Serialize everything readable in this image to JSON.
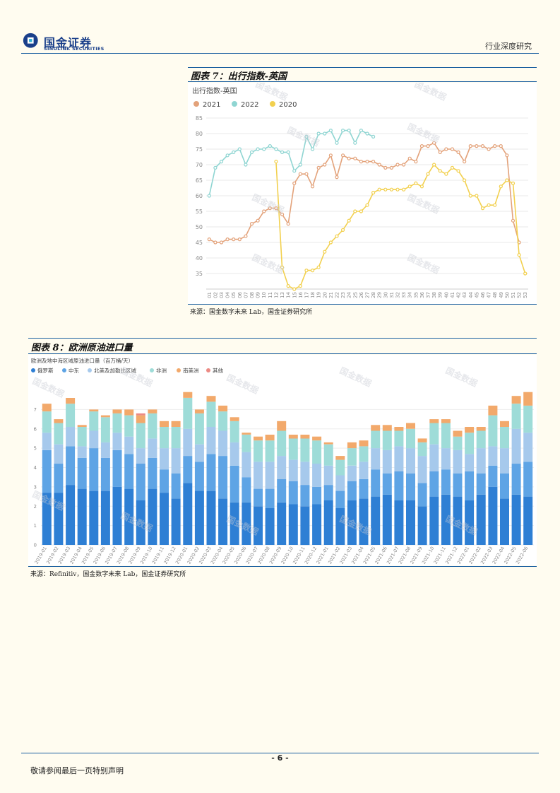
{
  "header": {
    "logo_cn": "国金证券",
    "logo_en": "SINOLINK SECURITIES",
    "doc_type": "行业深度研究"
  },
  "figure7": {
    "title": "图表 7：出行指数-英国",
    "source": "来源：国金数字未来 Lab，国金证券研究所",
    "watermark": "国金数据"
  },
  "figure8": {
    "title": "图表 8：欧洲原油进口量",
    "source": "来源：Refinitiv，国金数字未来 Lab，国金证券研究所",
    "watermark": "国金数据"
  },
  "footer": {
    "page": "- 6 -",
    "disclaimer": "敬请参阅最后一页特别声明"
  },
  "chart_data": [
    {
      "type": "line",
      "title": "出行指数-英国",
      "x": [
        "01",
        "02",
        "03",
        "04",
        "05",
        "06",
        "07",
        "08",
        "09",
        "10",
        "11",
        "12",
        "13",
        "14",
        "15",
        "16",
        "17",
        "18",
        "19",
        "20",
        "21",
        "22",
        "23",
        "24",
        "25",
        "26",
        "27",
        "28",
        "29",
        "30",
        "31",
        "32",
        "33",
        "34",
        "35",
        "36",
        "37",
        "38",
        "39",
        "40",
        "41",
        "42",
        "43",
        "44",
        "45",
        "46",
        "47",
        "48",
        "49",
        "50",
        "51",
        "52",
        "53"
      ],
      "ylim": [
        30,
        85
      ],
      "yticks": [
        35,
        40,
        45,
        50,
        55,
        60,
        65,
        70,
        75,
        80,
        85
      ],
      "legend_position": "top-left",
      "series": [
        {
          "name": "2021",
          "color": "#e3a27a",
          "values": [
            46,
            45,
            45,
            46,
            46,
            46,
            47,
            51,
            52,
            55,
            56,
            56,
            54,
            51,
            64,
            67,
            67,
            63,
            69,
            70,
            73,
            66,
            73,
            72,
            72,
            71,
            71,
            71,
            70,
            69,
            69,
            70,
            70,
            72,
            71,
            76,
            76,
            77,
            74,
            75,
            75,
            74,
            71,
            76,
            76,
            76,
            75,
            76,
            76,
            73,
            52,
            45,
            null
          ]
        },
        {
          "name": "2022",
          "color": "#8fd5d2",
          "values": [
            60,
            69,
            71,
            73,
            74,
            75,
            70,
            74,
            75,
            75,
            76,
            75,
            74,
            74,
            68,
            70,
            79,
            75,
            80,
            80,
            81,
            77,
            81,
            81,
            77,
            81,
            80,
            79,
            null,
            null,
            null,
            null,
            null,
            null,
            null,
            null,
            null,
            null,
            null,
            null,
            null,
            null,
            null,
            null,
            null,
            null,
            null,
            null,
            null,
            null,
            null,
            null,
            null
          ]
        },
        {
          "name": "2020",
          "color": "#f2d04e",
          "values": [
            null,
            null,
            null,
            null,
            null,
            null,
            null,
            null,
            null,
            null,
            null,
            71,
            37,
            31,
            30,
            31,
            36,
            36,
            37,
            42,
            45,
            47,
            49,
            52,
            55,
            55,
            57,
            61,
            62,
            62,
            62,
            62,
            62,
            63,
            64,
            63,
            67,
            70,
            68,
            67,
            69,
            68,
            65,
            60,
            60,
            56,
            57,
            57,
            63,
            65,
            64,
            41,
            35
          ]
        }
      ]
    },
    {
      "type": "bar",
      "stacked": true,
      "title": "欧洲及地中海区域原油进口量（百万桶/天）",
      "ylim": [
        0,
        8
      ],
      "yticks": [
        0,
        1,
        2,
        3,
        4,
        5,
        6,
        7
      ],
      "legend_position": "top-left",
      "categories": [
        "2019-01",
        "2019-02",
        "2019-03",
        "2019-04",
        "2019-05",
        "2019-06",
        "2019-07",
        "2019-08",
        "2019-09",
        "2019-10",
        "2019-11",
        "2019-12",
        "2020-01",
        "2020-02",
        "2020-03",
        "2020-04",
        "2020-05",
        "2020-06",
        "2020-07",
        "2020-08",
        "2020-09",
        "2020-10",
        "2020-11",
        "2020-12",
        "2021-01",
        "2021-02",
        "2021-03",
        "2021-04",
        "2021-05",
        "2021-06",
        "2021-07",
        "2021-08",
        "2021-09",
        "2021-10",
        "2021-11",
        "2021-12",
        "2022-01",
        "2022-02",
        "2022-03",
        "2022-04",
        "2022-05",
        "2022-06"
      ],
      "series": [
        {
          "name": "俄罗斯",
          "color": "#2e7fd4",
          "values": [
            2.7,
            2.7,
            3.1,
            2.9,
            2.8,
            2.8,
            3.0,
            2.9,
            2.3,
            2.9,
            2.7,
            2.4,
            3.2,
            2.8,
            2.8,
            2.4,
            2.2,
            2.2,
            2.0,
            1.9,
            2.2,
            2.1,
            2.0,
            2.1,
            2.3,
            1.9,
            2.3,
            2.4,
            2.5,
            2.6,
            2.3,
            2.3,
            2.0,
            2.5,
            2.6,
            2.5,
            2.3,
            2.6,
            3.0,
            2.4,
            2.6,
            2.5
          ]
        },
        {
          "name": "中东",
          "color": "#5ea4e5",
          "values": [
            2.2,
            1.5,
            2.0,
            1.6,
            2.2,
            1.7,
            1.9,
            1.8,
            1.9,
            1.6,
            1.2,
            1.3,
            1.4,
            1.5,
            1.9,
            2.2,
            1.9,
            1.3,
            0.9,
            1.0,
            1.2,
            1.2,
            1.1,
            0.9,
            0.8,
            0.9,
            1.0,
            1.0,
            1.4,
            1.1,
            1.5,
            1.4,
            1.2,
            1.3,
            1.3,
            1.2,
            1.5,
            1.1,
            1.1,
            1.3,
            1.6,
            1.8
          ]
        },
        {
          "name": "北美及加勒比区域",
          "color": "#a6c9ec",
          "values": [
            0.9,
            1.0,
            1.0,
            0.6,
            0.9,
            0.8,
            0.9,
            0.9,
            0.8,
            1.0,
            1.1,
            1.3,
            1.4,
            0.9,
            1.4,
            1.3,
            1.2,
            1.3,
            1.4,
            1.4,
            1.2,
            1.1,
            1.2,
            1.2,
            1.0,
            0.8,
            0.8,
            0.9,
            1.1,
            1.2,
            1.3,
            1.3,
            1.4,
            1.4,
            1.1,
            1.2,
            0.9,
            1.3,
            1.0,
            1.3,
            1.8,
            1.5
          ]
        },
        {
          "name": "非洲",
          "color": "#9edcd8",
          "values": [
            1.1,
            1.1,
            1.2,
            1.0,
            1.0,
            1.3,
            1.0,
            1.1,
            1.3,
            1.3,
            1.1,
            1.1,
            1.6,
            1.6,
            1.3,
            1.0,
            1.1,
            0.9,
            1.1,
            1.1,
            1.3,
            1.1,
            1.2,
            1.2,
            1.1,
            0.8,
            0.9,
            0.8,
            0.9,
            1.0,
            0.8,
            1.0,
            0.7,
            1.1,
            1.3,
            0.7,
            1.1,
            0.9,
            1.6,
            1.1,
            1.3,
            1.4
          ]
        },
        {
          "name": "南美洲",
          "color": "#f2a96b",
          "values": [
            0.4,
            0.2,
            0.3,
            0.1,
            0.1,
            0.1,
            0.2,
            0.3,
            0.4,
            0.2,
            0.3,
            0.3,
            0.3,
            0.2,
            0.3,
            0.3,
            0.2,
            0.1,
            0.2,
            0.3,
            0.5,
            0.2,
            0.2,
            0.2,
            0.1,
            0.2,
            0.3,
            0.3,
            0.3,
            0.3,
            0.2,
            0.3,
            0.2,
            0.2,
            0.2,
            0.3,
            0.3,
            0.2,
            0.5,
            0.3,
            0.4,
            0.7
          ]
        },
        {
          "name": "其他",
          "color": "#ec8a84",
          "values": [
            0.0,
            0.0,
            0.0,
            0.0,
            0.0,
            0.0,
            0.0,
            0.0,
            0.1,
            0.0,
            0.0,
            0.0,
            0.0,
            0.0,
            0.0,
            0.0,
            0.0,
            0.0,
            0.0,
            0.0,
            0.0,
            0.0,
            0.0,
            0.0,
            0.0,
            0.0,
            0.0,
            0.0,
            0.0,
            0.0,
            0.0,
            0.0,
            0.0,
            0.0,
            0.0,
            0.0,
            0.0,
            0.0,
            0.0,
            0.0,
            0.0,
            0.0
          ]
        }
      ]
    }
  ]
}
